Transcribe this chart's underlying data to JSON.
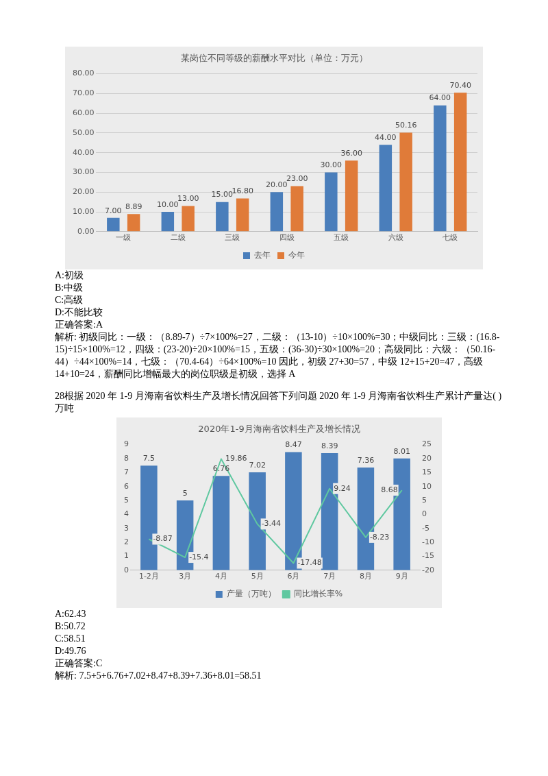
{
  "chart_data": [
    {
      "type": "bar",
      "title": "某岗位不同等级的薪酬水平对比（单位：万元）",
      "categories": [
        "一级",
        "二级",
        "三级",
        "四级",
        "五级",
        "六级",
        "七级"
      ],
      "series": [
        {
          "name": "去年",
          "color": "#4a7ebb",
          "values": [
            7,
            10,
            15,
            20,
            30,
            44,
            64
          ],
          "value_labels": [
            "7.00",
            "10.00",
            "15.00",
            "20.00",
            "30.00",
            "44.00",
            "64.00"
          ]
        },
        {
          "name": "今年",
          "color": "#e07b39",
          "values": [
            8.89,
            13,
            16.8,
            23,
            36,
            50.16,
            70.4
          ],
          "value_labels": [
            "8.89",
            "13.00",
            "16.80",
            "23.00",
            "36.00",
            "50.16",
            "70.40"
          ]
        }
      ],
      "ylim": [
        0,
        80
      ],
      "yticks": [
        {
          "value": 0,
          "label": "0.00"
        },
        {
          "value": 10,
          "label": "10.00"
        },
        {
          "value": 20,
          "label": "20.00"
        },
        {
          "value": 30,
          "label": "30.00"
        },
        {
          "value": 40,
          "label": "40.00"
        },
        {
          "value": 50,
          "label": "50.00"
        },
        {
          "value": 60,
          "label": "60.00"
        },
        {
          "value": 70,
          "label": "70.00"
        },
        {
          "value": 80,
          "label": "80.00"
        }
      ],
      "grid": "y",
      "legend": "bottom",
      "annotations": [
        "A:初级",
        "B:中级",
        "C:高级",
        "D:不能比较",
        "正确答案:A",
        "解析: 初级同比：一级：（8.89-7）÷7×100%=27，二级：（13-10）÷10×100%=30；中级同比：三级：(16.8-15)÷15×100%=12，四级：(23-20)÷20×100%=15，五级：(36-30)÷30×100%=20；高级同比：六级：（50.16-44）÷44×100%=14，七级：（70.4-64）÷64×100%=10 因此，初级 27+30=57，中级 12+15+20=47，高级 14+10=24，薪酬同比增幅最大的岗位职级是初级，选择 A"
      ]
    },
    {
      "type": "bar",
      "title": "2020年1-9月海南省饮料生产及增长情况",
      "categories": [
        "1-2月",
        "3月",
        "4月",
        "5月",
        "6月",
        "7月",
        "8月",
        "9月"
      ],
      "series": [
        {
          "name": "产量（万吨）",
          "color": "#4a7ebb",
          "values": [
            7.5,
            5,
            6.76,
            7.02,
            8.47,
            8.39,
            7.36,
            8.01
          ]
        },
        {
          "name": "同比增长率%",
          "type": "line",
          "axis": "y2",
          "color": "#5fc8a0",
          "values": [
            -8.87,
            -15.4,
            19.86,
            -3.44,
            -17.48,
            9.24,
            -8.23,
            8.68
          ]
        }
      ],
      "ylim": [
        0,
        9
      ],
      "yticks": [
        0,
        1,
        2,
        3,
        4,
        5,
        6,
        7,
        8,
        9
      ],
      "y2lim": [
        -20,
        25
      ],
      "y2ticks": [
        -20,
        -15,
        -10,
        -5,
        0,
        5,
        10,
        15,
        20,
        25
      ],
      "grid": false,
      "legend": "bottom",
      "marker": "none",
      "data_labels": true,
      "annotations": [
        "28根据 2020 年 1-9 月海南省饮料生产及增长情况回答下列问题  2020 年 1-9 月海南省饮料生产累计产量达(  )万吨",
        "A:62.43",
        "B:50.72",
        "C:58.51",
        "D:49.76",
        "正确答案:C",
        "解析: 7.5+5+6.76+7.02+8.47+8.39+7.36+8.01=58.51"
      ]
    }
  ]
}
